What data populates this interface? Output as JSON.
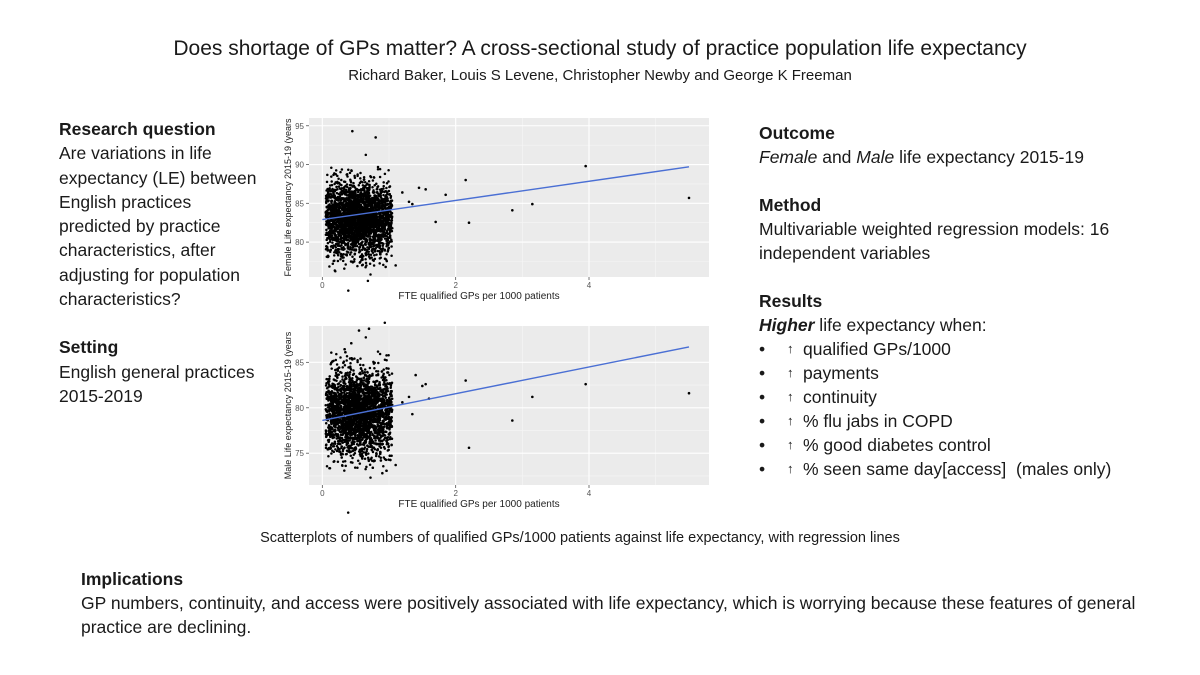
{
  "header": {
    "title": "Does shortage of GPs matter? A cross-sectional study of practice population life expectancy",
    "authors": "Richard Baker, Louis S Levene, Christopher Newby and George K Freeman"
  },
  "research_question": {
    "heading": "Research question",
    "text": "Are variations in life expectancy (LE) between English practices predicted by practice characteristics, after adjusting for population characteristics?"
  },
  "setting": {
    "heading": "Setting",
    "text": "English general practices 2015-2019"
  },
  "outcome": {
    "heading": "Outcome",
    "female": "Female",
    "and": " and ",
    "male": "Male",
    "rest": " life expectancy 2015-19"
  },
  "method": {
    "heading": "Method",
    "text": "Multivariable weighted regression models: 16 independent variables"
  },
  "results": {
    "heading": "Results",
    "lead_bold": "Higher",
    "lead_rest": " life expectancy when:",
    "bullet_char": "•",
    "arrow_char": "↑",
    "items": [
      "qualified GPs/1000",
      "payments",
      "continuity",
      "% flu jabs in COPD",
      "% good diabetes control",
      "% seen same day[access]  (males only)"
    ]
  },
  "caption": "Scatterplots of numbers of qualified GPs/1000 patients against life expectancy, with regression lines",
  "implications": {
    "heading": "Implications",
    "text": "GP numbers, continuity, and access were positively associated with life expectancy, which is worrying because these features of general practice are declining."
  },
  "chart_data": [
    {
      "type": "scatter",
      "ylabel": "Female Life expectancy 2015-19 (years",
      "xlabel": "FTE qualified GPs per 1000 patients",
      "x_ticks": [
        0,
        2,
        4
      ],
      "y_ticks": [
        80,
        85,
        90,
        95
      ],
      "xlim": [
        -0.2,
        5.8
      ],
      "ylim": [
        75.5,
        96
      ],
      "regression_line": {
        "x": [
          0,
          5.5
        ],
        "y": [
          82.9,
          89.7
        ]
      },
      "cluster": {
        "x_center": 0.55,
        "x_spread": 0.28,
        "y_center": 83.0,
        "y_spread": 2.3,
        "n": 2800
      },
      "outliers": {
        "x": [
          0.45,
          0.8,
          1.0,
          1.2,
          1.3,
          1.35,
          1.45,
          1.55,
          1.7,
          1.85,
          2.15,
          2.2,
          2.85,
          3.15,
          3.95,
          5.5,
          1.1,
          0.95
        ],
        "y": [
          94.3,
          93.5,
          82.4,
          86.4,
          85.2,
          84.9,
          87.0,
          86.8,
          82.6,
          86.1,
          88.0,
          82.5,
          84.1,
          84.9,
          89.8,
          85.7,
          77.0,
          76.8
        ]
      },
      "grid": true,
      "point_color": "#000000",
      "line_color": "#4a6fd4"
    },
    {
      "type": "scatter",
      "ylabel": "Male Life expectancy 2015-19 (years",
      "xlabel": "FTE qualified GPs per 1000 patients",
      "x_ticks": [
        0,
        2,
        4
      ],
      "y_ticks": [
        75,
        80,
        85
      ],
      "xlim": [
        -0.2,
        5.8
      ],
      "ylim": [
        71.5,
        89
      ],
      "regression_line": {
        "x": [
          0,
          5.5
        ],
        "y": [
          78.6,
          86.7
        ]
      },
      "cluster": {
        "x_center": 0.55,
        "x_spread": 0.28,
        "y_center": 79.5,
        "y_spread": 2.3,
        "n": 2800
      },
      "outliers": {
        "x": [
          0.55,
          0.7,
          1.0,
          1.2,
          1.3,
          1.4,
          1.5,
          1.55,
          1.6,
          1.35,
          2.15,
          2.2,
          2.85,
          3.15,
          3.95,
          5.5,
          1.1,
          0.9
        ],
        "y": [
          88.5,
          88.7,
          80.3,
          80.6,
          81.2,
          83.6,
          82.4,
          82.6,
          81.0,
          79.3,
          83.0,
          75.6,
          78.6,
          81.2,
          82.6,
          81.6,
          73.7,
          72.8
        ]
      },
      "grid": true,
      "point_color": "#000000",
      "line_color": "#4a6fd4"
    }
  ]
}
